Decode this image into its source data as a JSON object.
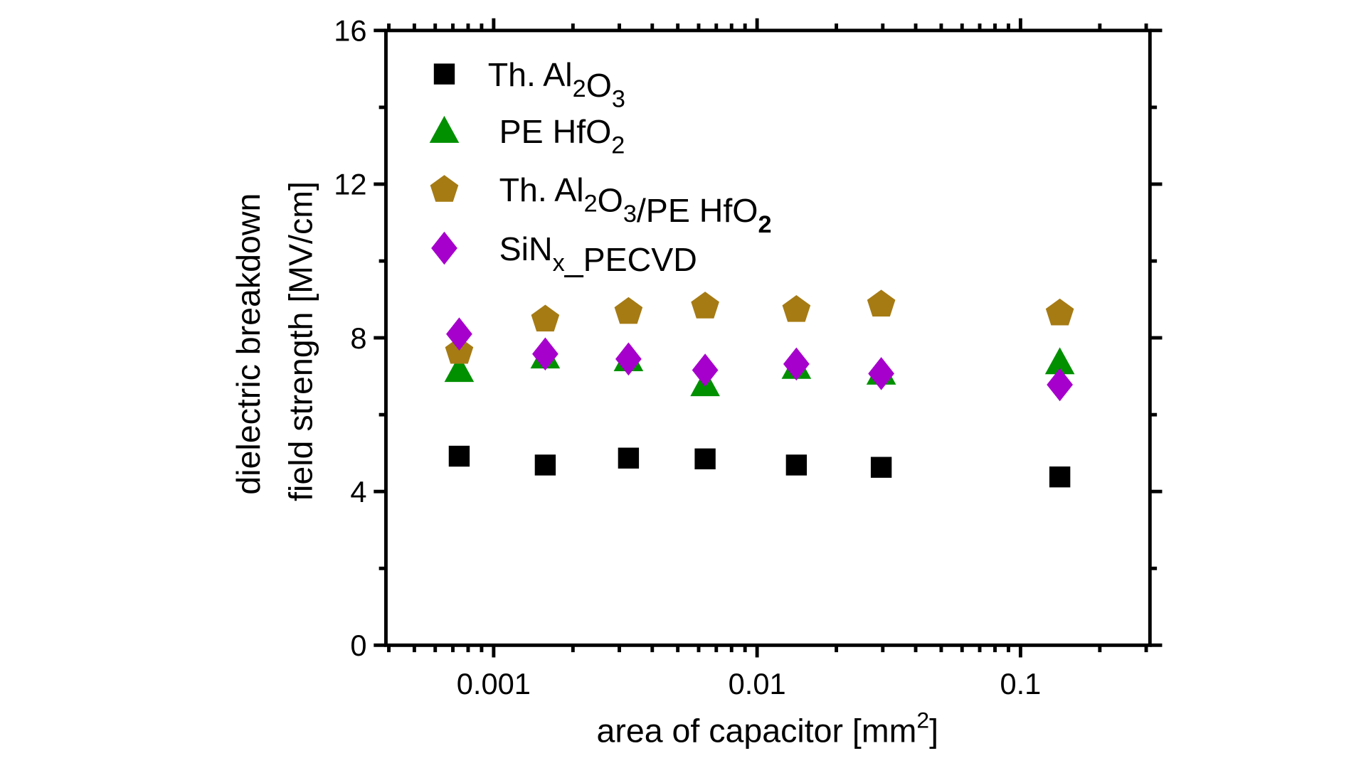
{
  "chart_data": {
    "type": "scatter",
    "xlabel": {
      "main": "area of capacitor [mm",
      "sup": "2",
      "end": "]"
    },
    "ylabel": [
      "dielectric breakdown",
      "field strength [MV/cm]"
    ],
    "x_scale": "log",
    "xlim": [
      0.00039,
      0.31
    ],
    "ylim": [
      0,
      16
    ],
    "x_ticks": [
      0.001,
      0.01,
      0.1
    ],
    "x_tick_labels": [
      "0.001",
      "0.01",
      "0.1"
    ],
    "y_ticks": [
      0,
      4,
      8,
      12,
      16
    ],
    "y_tick_labels": [
      "0",
      "4",
      "8",
      "12",
      "16"
    ],
    "grid": false,
    "legend_position": "top-left",
    "x": [
      0.00074,
      0.00157,
      0.00325,
      0.00635,
      0.0141,
      0.0296,
      0.141
    ],
    "series": [
      {
        "name": "Th. Al2O3",
        "label": [
          {
            "t": "Th. Al"
          },
          {
            "t": "2",
            "sub": true
          },
          {
            "t": "O"
          },
          {
            "t": "3",
            "sub": true
          }
        ],
        "marker": "square",
        "color": "#000000",
        "values": [
          4.92,
          4.69,
          4.87,
          4.85,
          4.69,
          4.63,
          4.38
        ]
      },
      {
        "name": "PE HfO2",
        "label": [
          {
            "t": "PE HfO"
          },
          {
            "t": "2",
            "sub": true
          }
        ],
        "marker": "triangle",
        "color": "#009000",
        "values": [
          7.17,
          7.52,
          7.45,
          6.8,
          7.25,
          7.1,
          7.37
        ]
      },
      {
        "name": "Th. Al2O3/PE HfO2",
        "label": [
          {
            "t": "Th. Al"
          },
          {
            "t": "2",
            "sub": true
          },
          {
            "t": "O"
          },
          {
            "t": "3",
            "sub": true
          },
          {
            "t": "/PE HfO"
          },
          {
            "t": "2",
            "sub": true,
            "bold": true
          }
        ],
        "marker": "pentagon",
        "color": "#a67b14",
        "values": [
          7.66,
          8.5,
          8.7,
          8.84,
          8.75,
          8.89,
          8.66
        ]
      },
      {
        "name": "SiNx_PECVD",
        "label": [
          {
            "t": "SiN"
          },
          {
            "t": "x",
            "sub": true
          },
          {
            "t": "_PECVD"
          }
        ],
        "marker": "diamond",
        "color": "#a600cc",
        "values": [
          8.1,
          7.58,
          7.45,
          7.16,
          7.32,
          7.07,
          6.78
        ]
      }
    ]
  }
}
